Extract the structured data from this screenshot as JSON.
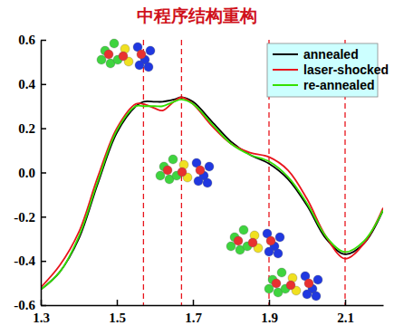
{
  "chart_data": {
    "type": "line",
    "title": "中程序结构重构",
    "x": [
      1.3,
      1.35,
      1.4,
      1.45,
      1.5,
      1.55,
      1.57,
      1.6,
      1.62,
      1.65,
      1.67,
      1.7,
      1.75,
      1.8,
      1.85,
      1.9,
      1.95,
      2.0,
      2.05,
      2.1,
      2.15,
      2.2
    ],
    "series": [
      {
        "name": "annealed",
        "color": "#000000",
        "values": [
          -0.53,
          -0.45,
          -0.3,
          -0.05,
          0.18,
          0.3,
          0.32,
          0.32,
          0.32,
          0.33,
          0.34,
          0.32,
          0.23,
          0.14,
          0.08,
          0.04,
          -0.03,
          -0.15,
          -0.3,
          -0.37,
          -0.32,
          -0.17
        ]
      },
      {
        "name": "laser-shocked",
        "color": "#e8141c",
        "values": [
          -0.52,
          -0.42,
          -0.27,
          -0.02,
          0.2,
          0.31,
          0.31,
          0.29,
          0.28,
          0.32,
          0.34,
          0.31,
          0.21,
          0.13,
          0.09,
          0.07,
          0.01,
          -0.12,
          -0.29,
          -0.39,
          -0.32,
          -0.16
        ]
      },
      {
        "name": "re-annealed",
        "color": "#33e000",
        "values": [
          -0.53,
          -0.45,
          -0.29,
          -0.04,
          0.19,
          0.3,
          0.3,
          0.3,
          0.3,
          0.32,
          0.33,
          0.31,
          0.22,
          0.13,
          0.08,
          0.05,
          -0.02,
          -0.14,
          -0.29,
          -0.36,
          -0.31,
          -0.17
        ]
      }
    ],
    "vlines": [
      1.57,
      1.67,
      1.9,
      2.1
    ],
    "xlim": [
      1.3,
      2.2
    ],
    "xticks": [
      1.3,
      1.5,
      1.7,
      1.9,
      2.1
    ],
    "ylim": [
      -0.6,
      0.6
    ],
    "yticks": [
      -0.6,
      -0.4,
      -0.2,
      {
        "value": 0,
        "label": "0.0"
      },
      0.2,
      0.4,
      0.6
    ],
    "legend": "upper right",
    "grid": false
  }
}
